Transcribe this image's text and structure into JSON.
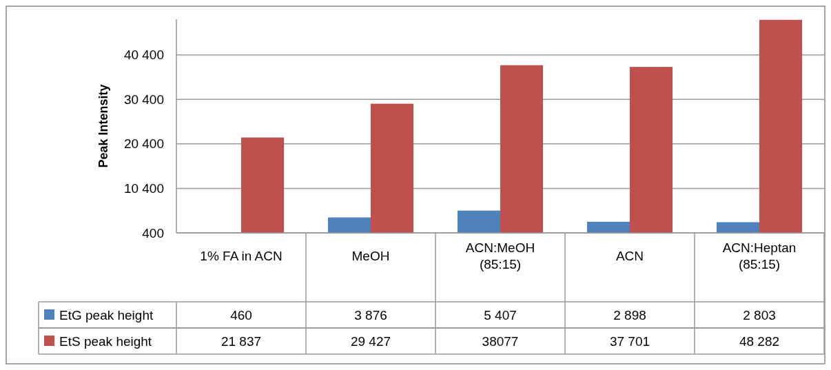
{
  "chart_data": {
    "type": "bar",
    "ylabel": "Peak Intensity",
    "categories": [
      "1% FA in ACN",
      "MeOH",
      "ACN:MeOH (85:15)",
      "ACN",
      "ACN:Heptan (85:15)"
    ],
    "series": [
      {
        "name": "EtG peak height",
        "color": "#4f81bd",
        "values": [
          460,
          3876,
          5407,
          2898,
          2803
        ],
        "value_labels": [
          "460",
          "3 876",
          "5 407",
          "2 898",
          "2 803"
        ]
      },
      {
        "name": "EtS peak height",
        "color": "#c0504d",
        "values": [
          21837,
          29427,
          38077,
          37701,
          48282
        ],
        "value_labels": [
          "21 837",
          "29 427",
          "38077",
          "37 701",
          "48 282"
        ]
      }
    ],
    "ylim": [
      400,
      48400
    ],
    "yticks": [
      {
        "value": 400,
        "label": "400"
      },
      {
        "value": 10400,
        "label": "10 400"
      },
      {
        "value": 20400,
        "label": "20 400"
      },
      {
        "value": 30400,
        "label": "30 400"
      },
      {
        "value": 40400,
        "label": "40 400"
      }
    ],
    "grid": "y",
    "legend": "bottom"
  }
}
